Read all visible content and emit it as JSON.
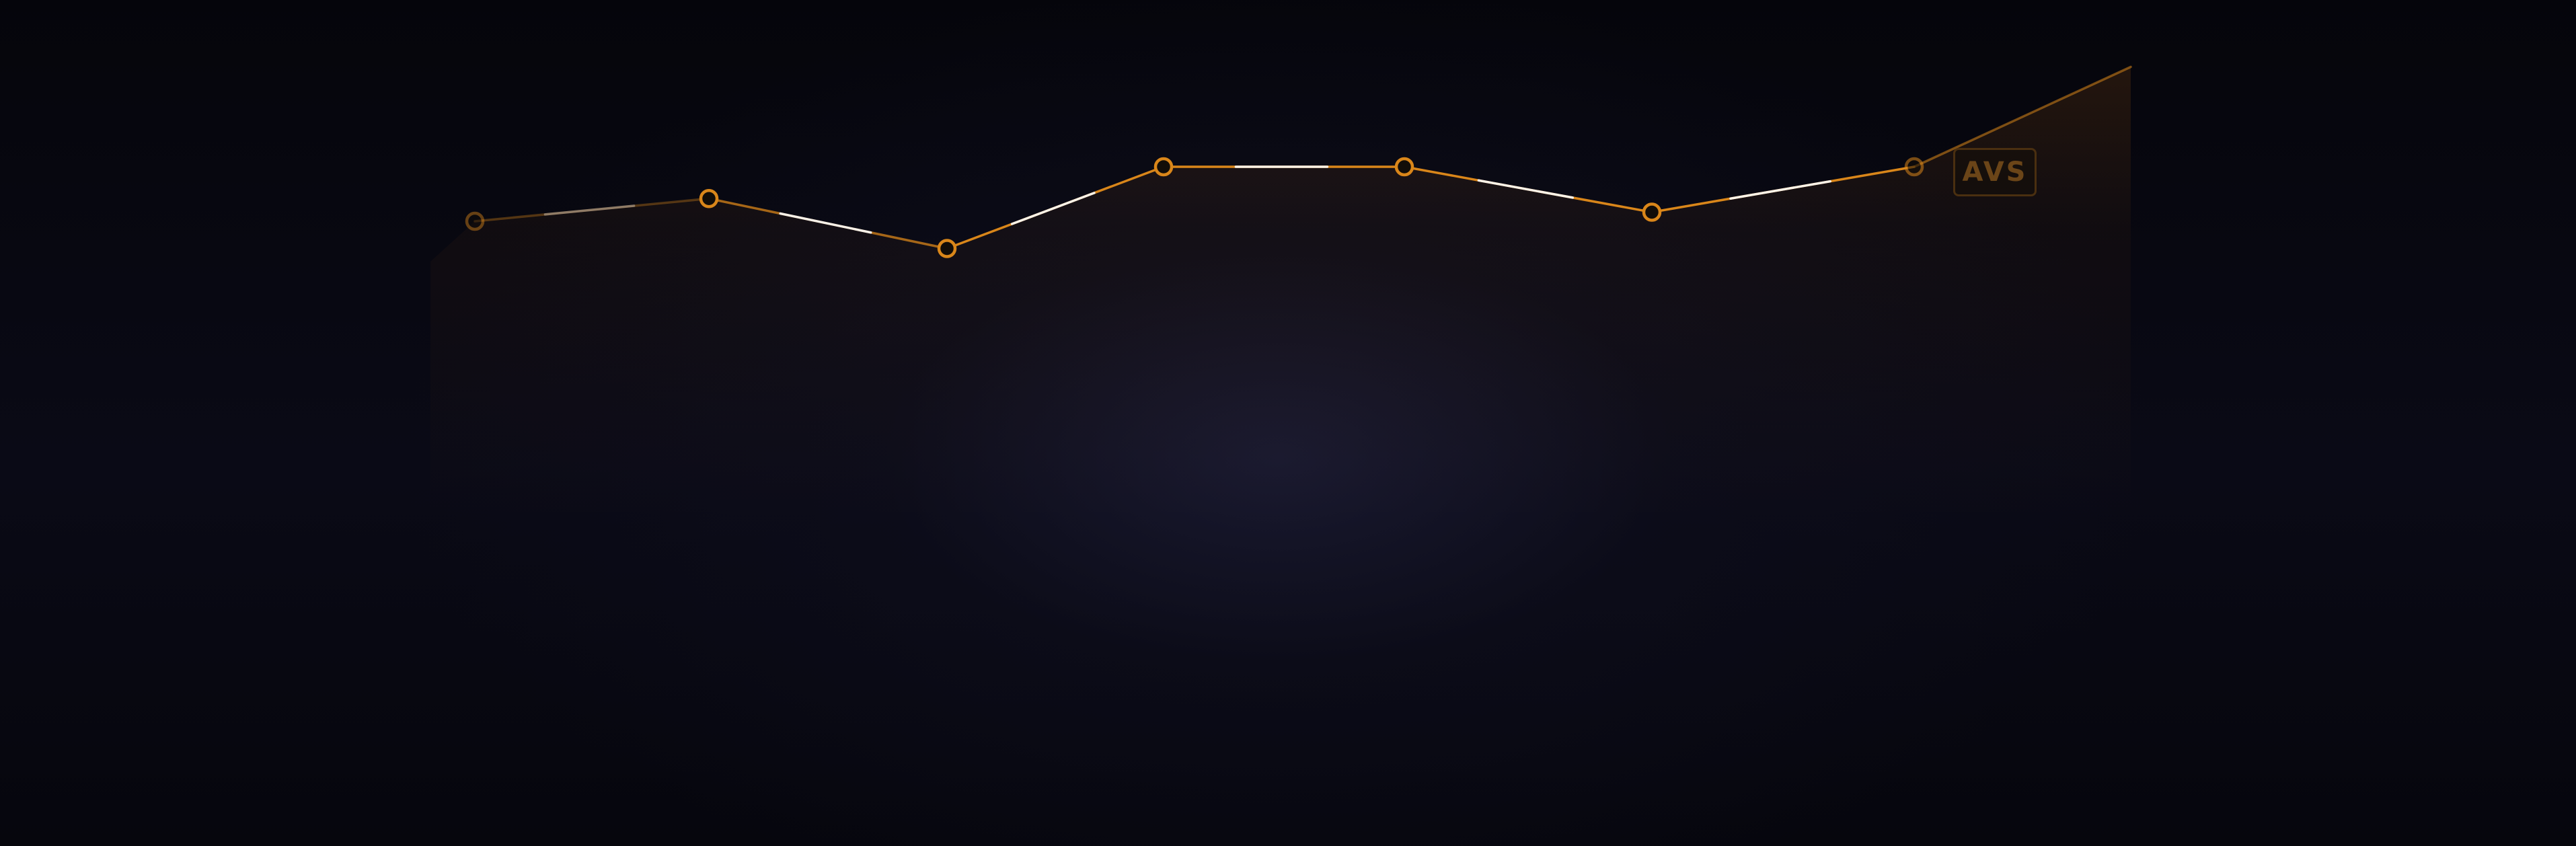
{
  "chart_data": {
    "type": "line",
    "x": [
      1,
      2,
      3,
      4,
      5,
      6,
      7,
      8
    ],
    "values": [
      6,
      6.5,
      5.4,
      7.2,
      7.2,
      6.2,
      7.2,
      9.4
    ],
    "ylim": [
      0,
      12
    ],
    "grid": false,
    "badge_label": "AVS",
    "colors": {
      "line": "#d9861a",
      "marker_fill": "#120d08",
      "highlight": "#ffffff",
      "guide": "#c57414",
      "area": "#c26a12",
      "badge_text": "#6b4518",
      "badge_border": "#4a2f10"
    }
  }
}
